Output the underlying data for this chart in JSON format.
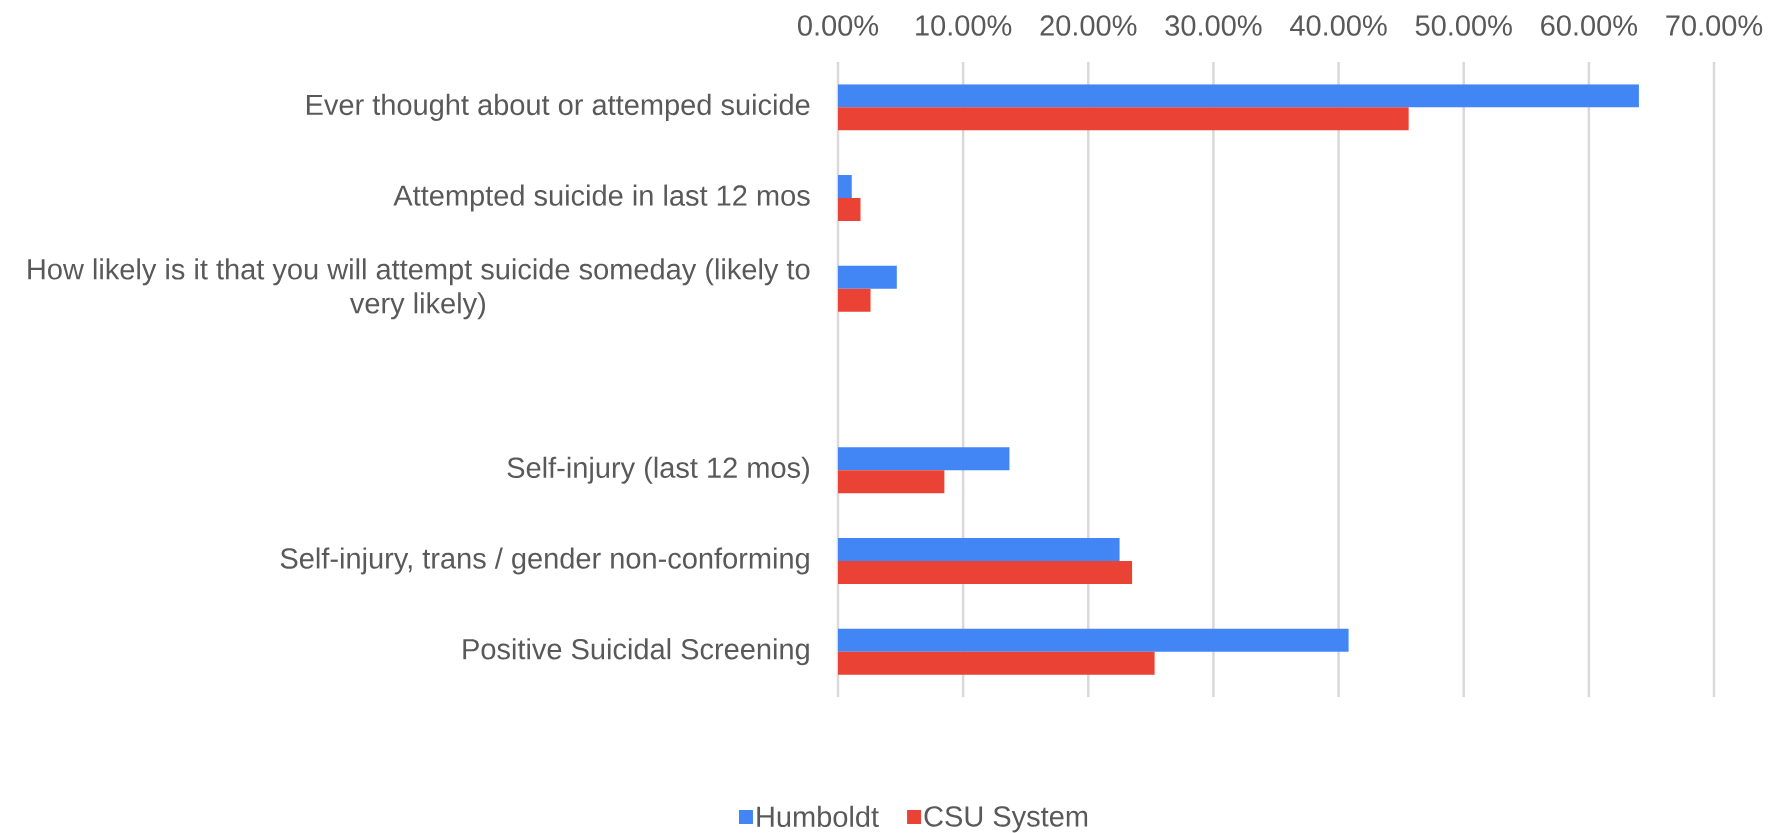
{
  "chart_data": {
    "type": "bar",
    "orientation": "horizontal",
    "categories": [
      "Ever thought about or attemped suicide",
      "Attempted suicide in last 12 mos",
      "How likely is it that you will attempt suicide someday (likely to very likely)",
      null,
      "Self-injury (last 12 mos)",
      "Self-injury, trans / gender non-conforming",
      "Positive Suicidal Screening"
    ],
    "series": [
      {
        "name": "Humboldt",
        "color": "#4285f4",
        "values": [
          64.0,
          1.1,
          4.7,
          null,
          13.7,
          22.5,
          40.8
        ]
      },
      {
        "name": "CSU System",
        "color": "#ea4335",
        "values": [
          45.6,
          1.8,
          2.6,
          null,
          8.5,
          23.5,
          25.3
        ]
      }
    ],
    "xlim": [
      0,
      70
    ],
    "xticks": [
      {
        "value": 0,
        "label": "0.00%"
      },
      {
        "value": 10,
        "label": "10.00%"
      },
      {
        "value": 20,
        "label": "20.00%"
      },
      {
        "value": 30,
        "label": "30.00%"
      },
      {
        "value": 40,
        "label": "40.00%"
      },
      {
        "value": 50,
        "label": "50.00%"
      },
      {
        "value": 60,
        "label": "60.00%"
      },
      {
        "value": 70,
        "label": "70.00%"
      }
    ],
    "grid": "x",
    "legend": "bottom"
  }
}
